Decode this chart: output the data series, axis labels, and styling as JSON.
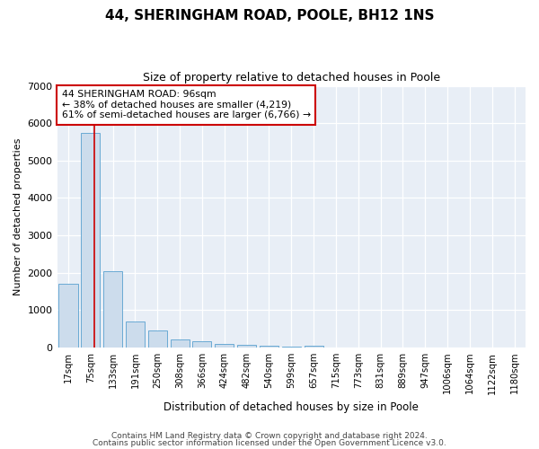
{
  "title": "44, SHERINGHAM ROAD, POOLE, BH12 1NS",
  "subtitle": "Size of property relative to detached houses in Poole",
  "xlabel": "Distribution of detached houses by size in Poole",
  "ylabel": "Number of detached properties",
  "bin_labels": [
    "17sqm",
    "75sqm",
    "133sqm",
    "191sqm",
    "250sqm",
    "308sqm",
    "366sqm",
    "424sqm",
    "482sqm",
    "540sqm",
    "599sqm",
    "657sqm",
    "715sqm",
    "773sqm",
    "831sqm",
    "889sqm",
    "947sqm",
    "1006sqm",
    "1064sqm",
    "1122sqm",
    "1180sqm"
  ],
  "bar_values": [
    1700,
    5750,
    2050,
    700,
    450,
    220,
    160,
    100,
    65,
    50,
    20,
    60,
    0,
    0,
    0,
    0,
    0,
    0,
    0,
    0,
    0
  ],
  "bar_color": "#ccdcec",
  "bar_edge_color": "#6aaad4",
  "annotation_text": "44 SHERINGHAM ROAD: 96sqm\n← 38% of detached houses are smaller (4,219)\n61% of semi-detached houses are larger (6,766) →",
  "annotation_box_color": "#ffffff",
  "annotation_border_color": "#cc0000",
  "vline_color": "#cc0000",
  "ylim": [
    0,
    7000
  ],
  "yticks": [
    0,
    1000,
    2000,
    3000,
    4000,
    5000,
    6000,
    7000
  ],
  "footer_line1": "Contains HM Land Registry data © Crown copyright and database right 2024.",
  "footer_line2": "Contains public sector information licensed under the Open Government Licence v3.0.",
  "bg_color": "#ffffff",
  "plot_bg_color": "#e8eef6",
  "vline_x": 1.15
}
